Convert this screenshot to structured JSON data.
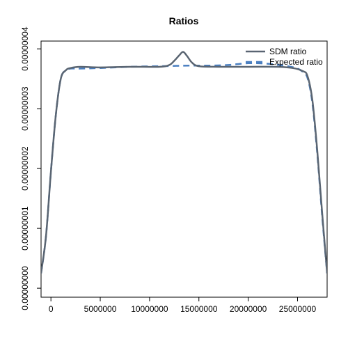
{
  "chart_data": {
    "type": "line",
    "title": "Ratios",
    "xlabel": "",
    "ylabel": "",
    "xlim": [
      -1000000,
      28000000
    ],
    "ylim": [
      -1.5e-09,
      4.13e-08
    ],
    "x_ticks": [
      0,
      5000000,
      10000000,
      15000000,
      20000000,
      25000000
    ],
    "x_tick_labels": [
      "0",
      "5000000",
      "10000000",
      "15000000",
      "20000000",
      "25000000"
    ],
    "y_ticks": [
      0,
      1e-08,
      2e-08,
      3e-08,
      4e-08
    ],
    "y_tick_labels": [
      "0.00000000",
      "0.00000001",
      "0.00000002",
      "0.00000003",
      "0.00000004"
    ],
    "grid": false,
    "legend_position": "top-right",
    "series": [
      {
        "name": "SDM ratio",
        "style": "solid",
        "color": "#5a6572",
        "x": [
          -1000000,
          -500000,
          0,
          500000,
          1000000,
          1500000,
          2000000,
          3000000,
          5000000,
          8000000,
          11000000,
          12000000,
          12500000,
          13000000,
          13400000,
          13800000,
          14300000,
          15000000,
          17000000,
          20000000,
          23000000,
          24500000,
          25500000,
          26000000,
          26500000,
          27000000,
          27500000,
          28000000
        ],
        "y": [
          2.5e-09,
          8.7e-09,
          1.95e-08,
          2.9e-08,
          3.5e-08,
          3.64e-08,
          3.68e-08,
          3.7e-08,
          3.69e-08,
          3.7e-08,
          3.7e-08,
          3.73e-08,
          3.8e-08,
          3.89e-08,
          3.95e-08,
          3.88e-08,
          3.77e-08,
          3.71e-08,
          3.7e-08,
          3.7e-08,
          3.7e-08,
          3.68e-08,
          3.63e-08,
          3.55e-08,
          3.15e-08,
          2.3e-08,
          1.25e-08,
          2.5e-09
        ]
      },
      {
        "name": "Expected ratio",
        "style": "dashed",
        "color": "#4a7fc1",
        "x": [
          -1000000,
          -500000,
          0,
          500000,
          1000000,
          1500000,
          2000000,
          3000000,
          5000000,
          8000000,
          11000000,
          14000000,
          16000000,
          18000000,
          20000000,
          22000000,
          24000000,
          25000000,
          25500000,
          26000000,
          26500000,
          27000000,
          27500000,
          28000000
        ],
        "y": [
          2.5e-09,
          8.7e-09,
          1.95e-08,
          2.9e-08,
          3.5e-08,
          3.64e-08,
          3.67e-08,
          3.67e-08,
          3.68e-08,
          3.7e-08,
          3.71e-08,
          3.72e-08,
          3.72e-08,
          3.73e-08,
          3.76e-08,
          3.75e-08,
          3.71e-08,
          3.67e-08,
          3.62e-08,
          3.52e-08,
          3.1e-08,
          2.25e-08,
          1.2e-08,
          2.5e-09
        ]
      }
    ]
  }
}
